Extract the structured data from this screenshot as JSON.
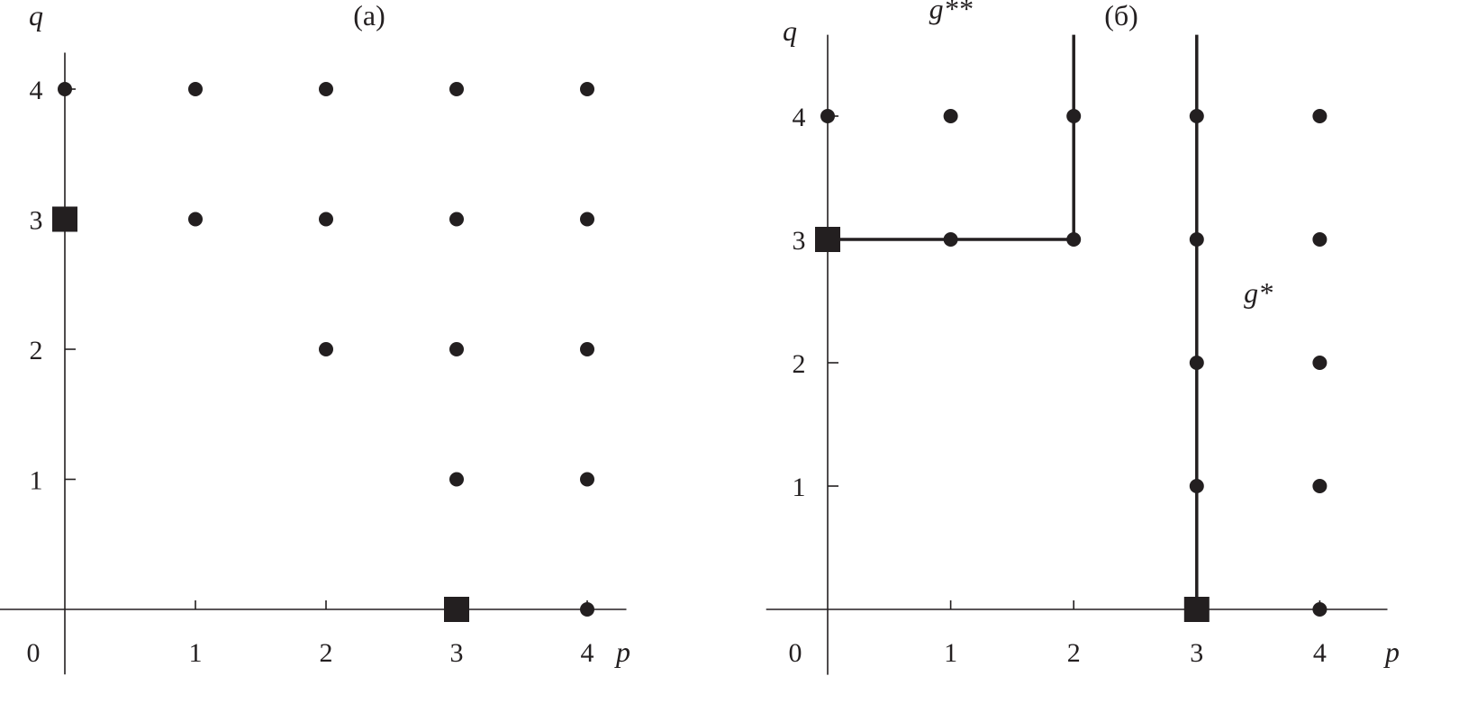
{
  "chart_data": [
    {
      "type": "scatter",
      "panel_label": "(а)",
      "xlabel": "p",
      "ylabel": "q",
      "origin_label": "0",
      "xticks": [
        "1",
        "2",
        "3",
        "4"
      ],
      "yticks": [
        "1",
        "2",
        "3",
        "4"
      ],
      "xlim": [
        -0.5,
        4.3
      ],
      "ylim": [
        -0.5,
        4.28
      ],
      "grid": false,
      "dots": [
        [
          0,
          4
        ],
        [
          1,
          4
        ],
        [
          2,
          4
        ],
        [
          3,
          4
        ],
        [
          4,
          4
        ],
        [
          1,
          3
        ],
        [
          2,
          3
        ],
        [
          3,
          3
        ],
        [
          4,
          3
        ],
        [
          2,
          2
        ],
        [
          3,
          2
        ],
        [
          4,
          2
        ],
        [
          3,
          1
        ],
        [
          4,
          1
        ],
        [
          4,
          0
        ]
      ],
      "squares": [
        [
          0,
          3
        ],
        [
          3,
          0
        ]
      ],
      "lines": [],
      "annotations": []
    },
    {
      "type": "scatter",
      "panel_label": "(б)",
      "xlabel": "p",
      "ylabel": "q",
      "origin_label": "0",
      "xticks": [
        "1",
        "2",
        "3",
        "4"
      ],
      "yticks": [
        "1",
        "2",
        "3",
        "4"
      ],
      "xlim": [
        -0.5,
        4.55
      ],
      "ylim": [
        -0.53,
        4.66
      ],
      "grid": false,
      "dots": [
        [
          0,
          4
        ],
        [
          1,
          4
        ],
        [
          2,
          4
        ],
        [
          3,
          4
        ],
        [
          4,
          4
        ],
        [
          1,
          3
        ],
        [
          2,
          3
        ],
        [
          3,
          3
        ],
        [
          4,
          3
        ],
        [
          3,
          2
        ],
        [
          4,
          2
        ],
        [
          3,
          1
        ],
        [
          4,
          1
        ],
        [
          4,
          0
        ]
      ],
      "squares": [
        [
          0,
          3
        ],
        [
          3,
          0
        ]
      ],
      "lines": [
        [
          [
            0,
            3
          ],
          [
            2,
            3
          ],
          [
            2,
            4.66
          ]
        ],
        [
          [
            3,
            0
          ],
          [
            3,
            4.66
          ]
        ]
      ],
      "annotations": [
        {
          "text": "g**",
          "at": [
            1,
            4.66
          ]
        },
        {
          "text": "g*",
          "at": [
            3.5,
            2.4
          ]
        }
      ]
    }
  ],
  "colors": {
    "ink": "#231f20",
    "background": "#ffffff"
  }
}
